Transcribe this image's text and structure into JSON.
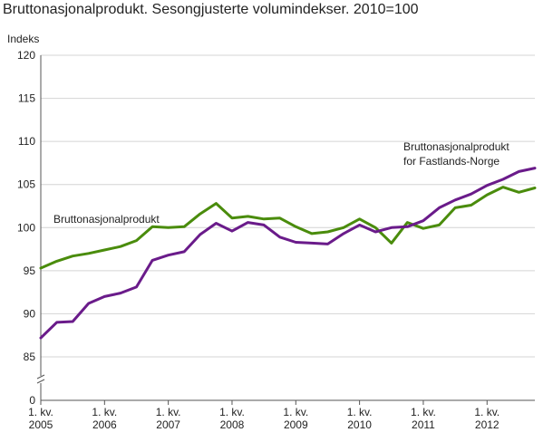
{
  "chart_data": {
    "type": "line",
    "title": "Bruttonasjonalprodukt. Sesongjusterte volumindekser. 2010=100",
    "ylabel": "Indeks",
    "xlabel": "",
    "ylim": [
      0,
      120
    ],
    "y_break": [
      0,
      80
    ],
    "yticks": [
      0,
      85,
      90,
      95,
      100,
      105,
      110,
      115,
      120
    ],
    "grid": "horizontal",
    "x_start": "2005K1",
    "x_ticks": [
      {
        "index": 0,
        "line1": "1. kv.",
        "line2": "2005"
      },
      {
        "index": 4,
        "line1": "1. kv.",
        "line2": "2006"
      },
      {
        "index": 8,
        "line1": "1. kv.",
        "line2": "2007"
      },
      {
        "index": 12,
        "line1": "1. kv.",
        "line2": "2008"
      },
      {
        "index": 16,
        "line1": "1. kv.",
        "line2": "2009"
      },
      {
        "index": 20,
        "line1": "1. kv.",
        "line2": "2010"
      },
      {
        "index": 24,
        "line1": "1. kv.",
        "line2": "2011"
      },
      {
        "index": 28,
        "line1": "1. kv.",
        "line2": "2012"
      }
    ],
    "series": [
      {
        "name": "Bruttonasjonalprodukt",
        "label_lines": [
          "Bruttonasjonalprodukt"
        ],
        "color": "#4a8c0c",
        "values": [
          95.3,
          96.1,
          96.7,
          97.0,
          97.4,
          97.8,
          98.5,
          100.1,
          100.0,
          100.1,
          101.6,
          102.8,
          101.1,
          101.3,
          101.0,
          101.1,
          100.1,
          99.3,
          99.5,
          100.0,
          101.0,
          100.0,
          98.2,
          100.6,
          99.9,
          100.3,
          102.3,
          102.6,
          103.8,
          104.7,
          104.1,
          104.6
        ]
      },
      {
        "name": "Bruttonasjonalprodukt for Fastlands-Norge",
        "label_lines": [
          "Bruttonasjonalprodukt",
          "for Fastlands-Norge"
        ],
        "color": "#6a1b8a",
        "values": [
          87.2,
          89.0,
          89.1,
          91.2,
          92.0,
          92.4,
          93.1,
          96.2,
          96.8,
          97.2,
          99.2,
          100.5,
          99.6,
          100.6,
          100.3,
          98.9,
          98.3,
          98.2,
          98.1,
          99.3,
          100.3,
          99.5,
          100.0,
          100.1,
          100.8,
          102.3,
          103.2,
          103.9,
          104.9,
          105.6,
          106.5,
          106.9
        ]
      }
    ]
  }
}
